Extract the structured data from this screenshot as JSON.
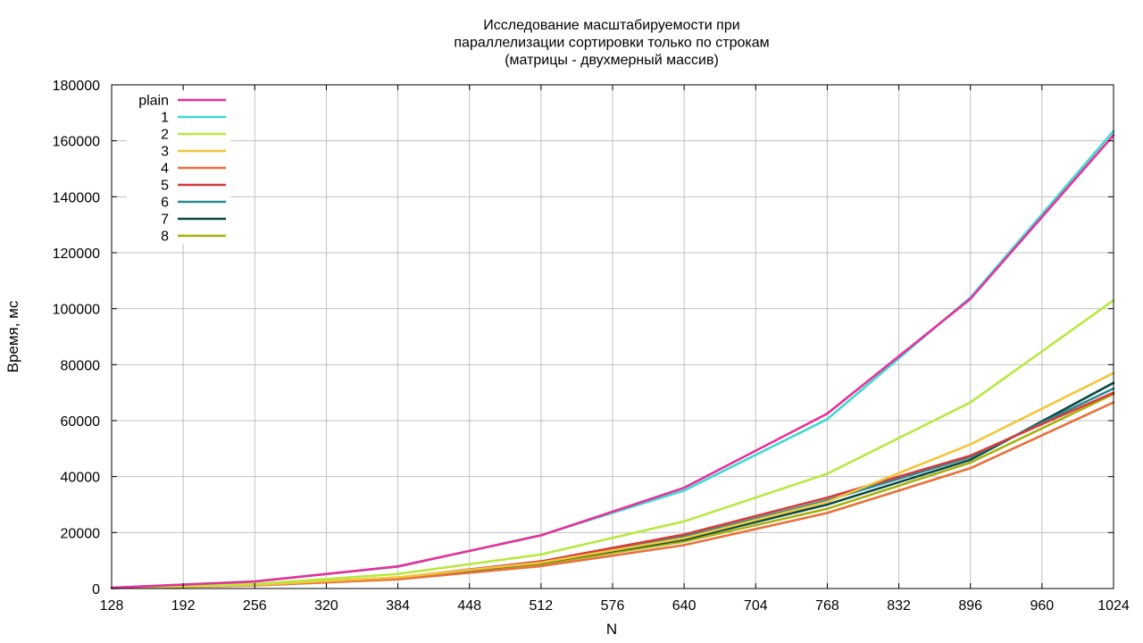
{
  "chart_data": {
    "type": "line",
    "title": [
      "Исследование масштабируемости при",
      "параллелизации сортировки только по строкам",
      "(матрицы - двухмерный массив)"
    ],
    "xlabel": "N",
    "ylabel": "Время, мс",
    "xlim": [
      128,
      1024
    ],
    "ylim": [
      0,
      180000
    ],
    "xticks": [
      128,
      192,
      256,
      320,
      384,
      448,
      512,
      576,
      640,
      704,
      768,
      832,
      896,
      960,
      1024
    ],
    "yticks": [
      0,
      20000,
      40000,
      60000,
      80000,
      100000,
      120000,
      140000,
      160000,
      180000
    ],
    "grid": true,
    "legend_position": "top-left",
    "x": [
      128,
      256,
      384,
      512,
      640,
      768,
      896,
      1024
    ],
    "series": [
      {
        "name": "plain",
        "color": "#e8309a",
        "values": [
          300,
          2500,
          7900,
          19000,
          36000,
          62500,
          103500,
          162000
        ]
      },
      {
        "name": "1",
        "color": "#3dd9cf",
        "values": [
          300,
          2600,
          7800,
          19100,
          35000,
          60500,
          104000,
          163500
        ]
      },
      {
        "name": "2",
        "color": "#b8e840",
        "values": [
          250,
          1600,
          5200,
          12200,
          24000,
          41000,
          66500,
          103000
        ]
      },
      {
        "name": "3",
        "color": "#f0c63a",
        "values": [
          200,
          1300,
          4000,
          9300,
          18000,
          31000,
          51500,
          77000
        ]
      },
      {
        "name": "4",
        "color": "#e8703a",
        "values": [
          150,
          1100,
          3300,
          8000,
          15500,
          27000,
          43000,
          66500
        ]
      },
      {
        "name": "5",
        "color": "#d83a3a",
        "values": [
          200,
          1300,
          3900,
          9700,
          19300,
          32500,
          47500,
          70000
        ]
      },
      {
        "name": "6",
        "color": "#2a8a94",
        "values": [
          200,
          1300,
          3900,
          9500,
          18500,
          31500,
          47000,
          71500
        ]
      },
      {
        "name": "7",
        "color": "#0a4a44",
        "values": [
          200,
          1250,
          3800,
          9200,
          17500,
          30000,
          46000,
          73500
        ]
      },
      {
        "name": "8",
        "color": "#a8b010",
        "values": [
          180,
          1200,
          3600,
          8700,
          16800,
          28500,
          45000,
          69500
        ]
      }
    ]
  }
}
